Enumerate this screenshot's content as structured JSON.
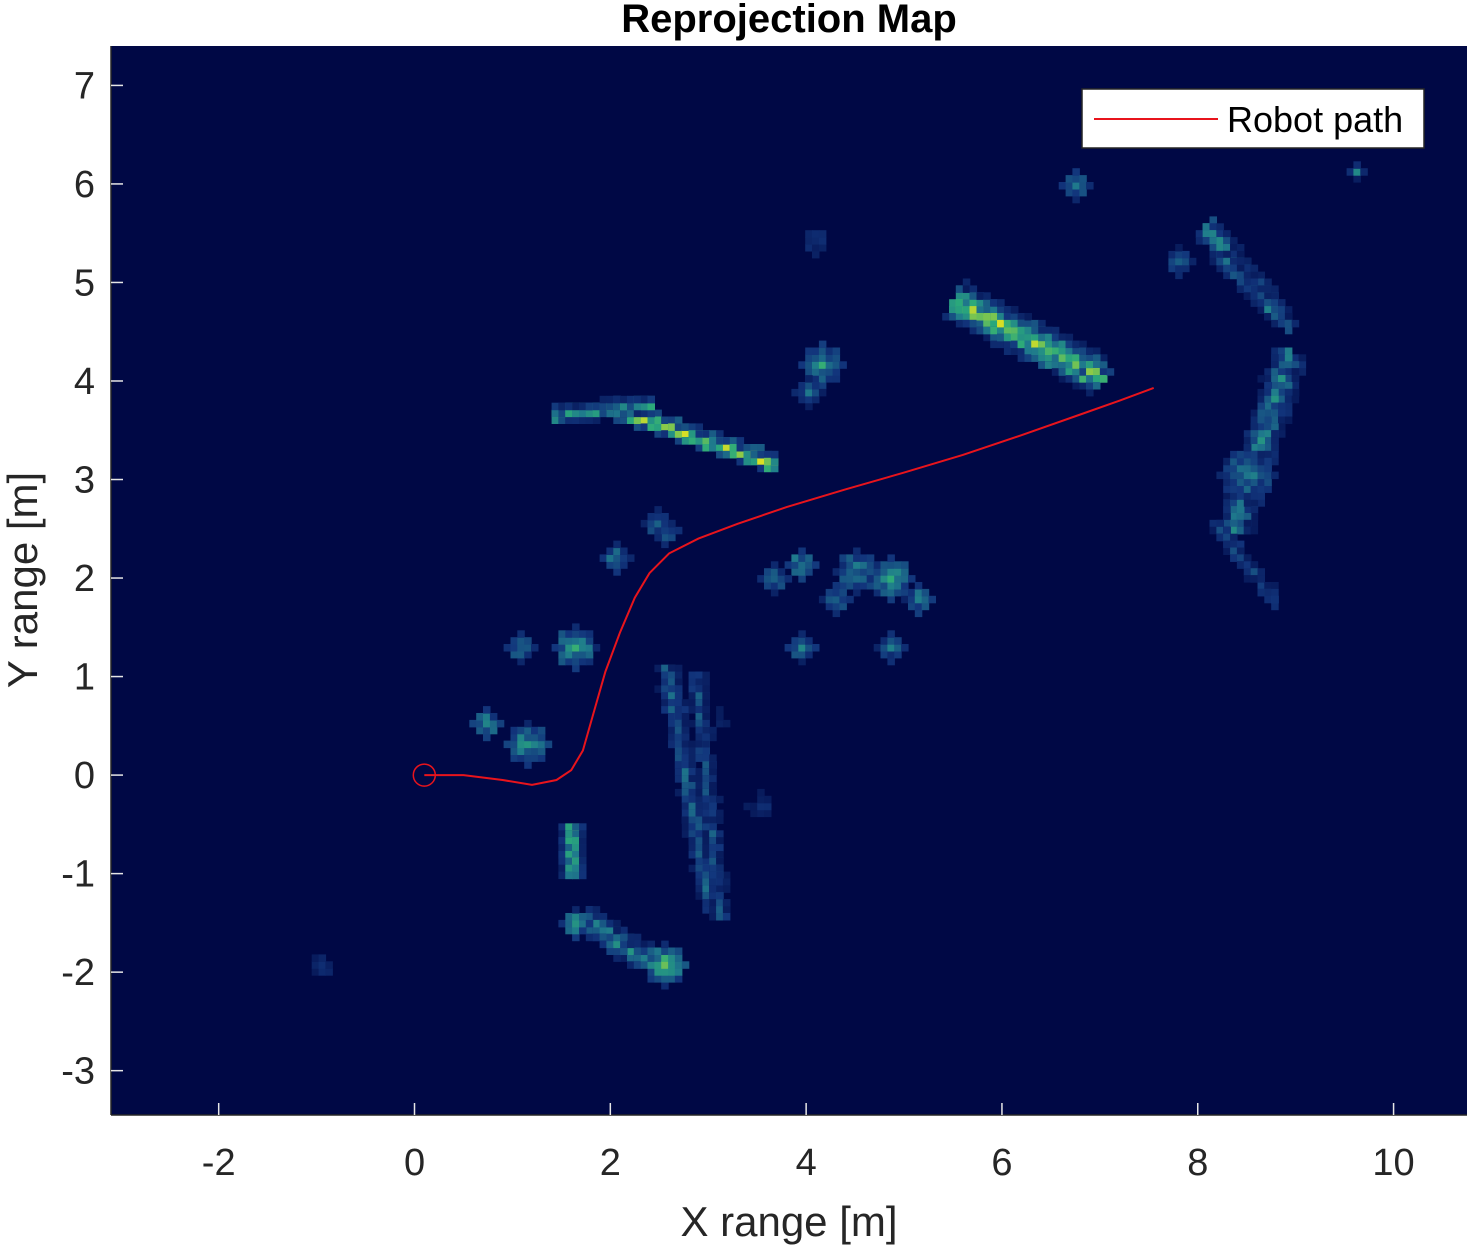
{
  "chart_data": {
    "type": "heatmap",
    "title": "Reprojection Map",
    "xlabel": "X range [m]",
    "ylabel": "Y range [m]",
    "xlim": [
      -3.1,
      10.75
    ],
    "ylim": [
      -3.45,
      7.4
    ],
    "xticks": [
      -2,
      0,
      2,
      4,
      6,
      8,
      10
    ],
    "yticks": [
      -3,
      -2,
      -1,
      0,
      1,
      2,
      3,
      4,
      5,
      6,
      7
    ],
    "grid": false,
    "legend": {
      "placement": "top-right",
      "entries": [
        {
          "label": "Robot path",
          "color": "#e8141c"
        }
      ]
    },
    "background_color": "#000845",
    "colormap": [
      "#000845",
      "#12357c",
      "#1f7a8c",
      "#2aa97b",
      "#86c94a",
      "#f2e61b"
    ],
    "series": [
      {
        "name": "Robot path",
        "type": "line",
        "color": "#e8141c",
        "start_marker": "circle",
        "points": [
          [
            0.1,
            0.0
          ],
          [
            0.5,
            0.0
          ],
          [
            0.9,
            -0.05
          ],
          [
            1.2,
            -0.1
          ],
          [
            1.45,
            -0.05
          ],
          [
            1.6,
            0.05
          ],
          [
            1.72,
            0.25
          ],
          [
            1.82,
            0.6
          ],
          [
            1.95,
            1.05
          ],
          [
            2.1,
            1.45
          ],
          [
            2.25,
            1.8
          ],
          [
            2.4,
            2.05
          ],
          [
            2.6,
            2.25
          ],
          [
            2.9,
            2.4
          ],
          [
            3.3,
            2.55
          ],
          [
            3.8,
            2.72
          ],
          [
            4.4,
            2.9
          ],
          [
            5.0,
            3.07
          ],
          [
            5.6,
            3.25
          ],
          [
            6.2,
            3.45
          ],
          [
            6.8,
            3.66
          ],
          [
            7.2,
            3.8
          ],
          [
            7.55,
            3.93
          ]
        ]
      }
    ],
    "heatmap_features": [
      {
        "shape": "streak",
        "from": [
          2.0,
          3.75
        ],
        "to": [
          3.65,
          3.2
        ],
        "width": 0.14,
        "intensity": 0.85
      },
      {
        "shape": "streak",
        "from": [
          1.4,
          3.7
        ],
        "to": [
          2.4,
          3.8
        ],
        "width": 0.13,
        "intensity": 0.6
      },
      {
        "shape": "streak",
        "from": [
          5.5,
          4.85
        ],
        "to": [
          6.95,
          4.1
        ],
        "width": 0.38,
        "intensity": 0.85
      },
      {
        "shape": "streak",
        "from": [
          6.85,
          4.2
        ],
        "to": [
          7.0,
          4.05
        ],
        "width": 0.12,
        "intensity": 1.0
      },
      {
        "shape": "streak",
        "from": [
          8.05,
          5.6
        ],
        "to": [
          8.75,
          4.75
        ],
        "width": 0.22,
        "intensity": 0.55
      },
      {
        "shape": "streak",
        "from": [
          8.2,
          5.3
        ],
        "to": [
          8.9,
          4.6
        ],
        "width": 0.12,
        "intensity": 0.4
      },
      {
        "shape": "streak",
        "from": [
          8.9,
          4.3
        ],
        "to": [
          8.35,
          2.55
        ],
        "width": 0.35,
        "intensity": 0.45
      },
      {
        "shape": "streak",
        "from": [
          8.15,
          2.6
        ],
        "to": [
          8.75,
          1.8
        ],
        "width": 0.12,
        "intensity": 0.25
      },
      {
        "shape": "streak",
        "from": [
          2.55,
          1.1
        ],
        "to": [
          3.0,
          -1.3
        ],
        "width": 0.2,
        "intensity": 0.35
      },
      {
        "shape": "streak",
        "from": [
          2.85,
          1.05
        ],
        "to": [
          3.1,
          -1.4
        ],
        "width": 0.12,
        "intensity": 0.3
      },
      {
        "shape": "streak",
        "from": [
          1.6,
          -0.5
        ],
        "to": [
          1.6,
          -0.95
        ],
        "width": 0.2,
        "intensity": 0.7
      },
      {
        "shape": "streak",
        "from": [
          1.7,
          -1.4
        ],
        "to": [
          2.3,
          -1.8
        ],
        "width": 0.18,
        "intensity": 0.6
      },
      {
        "shape": "blob",
        "at": [
          2.55,
          -1.9
        ],
        "r": 0.16,
        "intensity": 0.7
      },
      {
        "shape": "blob",
        "at": [
          0.7,
          0.55
        ],
        "r": 0.12,
        "intensity": 0.55
      },
      {
        "shape": "blob",
        "at": [
          1.1,
          0.35
        ],
        "r": 0.16,
        "intensity": 0.55
      },
      {
        "shape": "blob",
        "at": [
          1.6,
          1.3
        ],
        "r": 0.15,
        "intensity": 0.6
      },
      {
        "shape": "blob",
        "at": [
          1.05,
          1.3
        ],
        "r": 0.1,
        "intensity": 0.45
      },
      {
        "shape": "blob",
        "at": [
          2.05,
          2.25
        ],
        "r": 0.13,
        "intensity": 0.5
      },
      {
        "shape": "blob",
        "at": [
          2.5,
          2.55
        ],
        "r": 0.1,
        "intensity": 0.4
      },
      {
        "shape": "blob",
        "at": [
          4.1,
          4.2
        ],
        "r": 0.2,
        "intensity": 0.55
      },
      {
        "shape": "blob",
        "at": [
          4.0,
          3.9
        ],
        "r": 0.1,
        "intensity": 0.35
      },
      {
        "shape": "blob",
        "at": [
          3.95,
          2.2
        ],
        "r": 0.14,
        "intensity": 0.6
      },
      {
        "shape": "blob",
        "at": [
          3.65,
          2.0
        ],
        "r": 0.14,
        "intensity": 0.45
      },
      {
        "shape": "blob",
        "at": [
          4.45,
          2.1
        ],
        "r": 0.18,
        "intensity": 0.5
      },
      {
        "shape": "blob",
        "at": [
          4.3,
          1.85
        ],
        "r": 0.14,
        "intensity": 0.45
      },
      {
        "shape": "blob",
        "at": [
          4.85,
          2.0
        ],
        "r": 0.16,
        "intensity": 0.55
      },
      {
        "shape": "blob",
        "at": [
          5.1,
          1.8
        ],
        "r": 0.13,
        "intensity": 0.5
      },
      {
        "shape": "blob",
        "at": [
          3.9,
          1.35
        ],
        "r": 0.12,
        "intensity": 0.45
      },
      {
        "shape": "blob",
        "at": [
          4.8,
          1.35
        ],
        "r": 0.1,
        "intensity": 0.4
      },
      {
        "shape": "blob",
        "at": [
          2.45,
          2.6
        ],
        "r": 0.12,
        "intensity": 0.4
      },
      {
        "shape": "blob",
        "at": [
          1.6,
          -1.45
        ],
        "r": 0.12,
        "intensity": 0.55
      },
      {
        "shape": "blob",
        "at": [
          2.0,
          -1.65
        ],
        "r": 0.12,
        "intensity": 0.45
      },
      {
        "shape": "blob",
        "at": [
          6.7,
          6.05
        ],
        "r": 0.1,
        "intensity": 0.45
      },
      {
        "shape": "blob",
        "at": [
          9.6,
          6.15
        ],
        "r": 0.07,
        "intensity": 0.4
      },
      {
        "shape": "blob",
        "at": [
          7.75,
          5.25
        ],
        "r": 0.12,
        "intensity": 0.35
      },
      {
        "shape": "blob",
        "at": [
          4.05,
          5.45
        ],
        "r": 0.08,
        "intensity": 0.25
      },
      {
        "shape": "blob",
        "at": [
          8.45,
          3.1
        ],
        "r": 0.22,
        "intensity": 0.45
      },
      {
        "shape": "blob",
        "at": [
          -0.95,
          -1.9
        ],
        "r": 0.08,
        "intensity": 0.2
      },
      {
        "shape": "blob",
        "at": [
          3.5,
          -0.25
        ],
        "r": 0.09,
        "intensity": 0.2
      },
      {
        "shape": "blob",
        "at": [
          3.05,
          0.6
        ],
        "r": 0.1,
        "intensity": 0.15
      }
    ]
  }
}
